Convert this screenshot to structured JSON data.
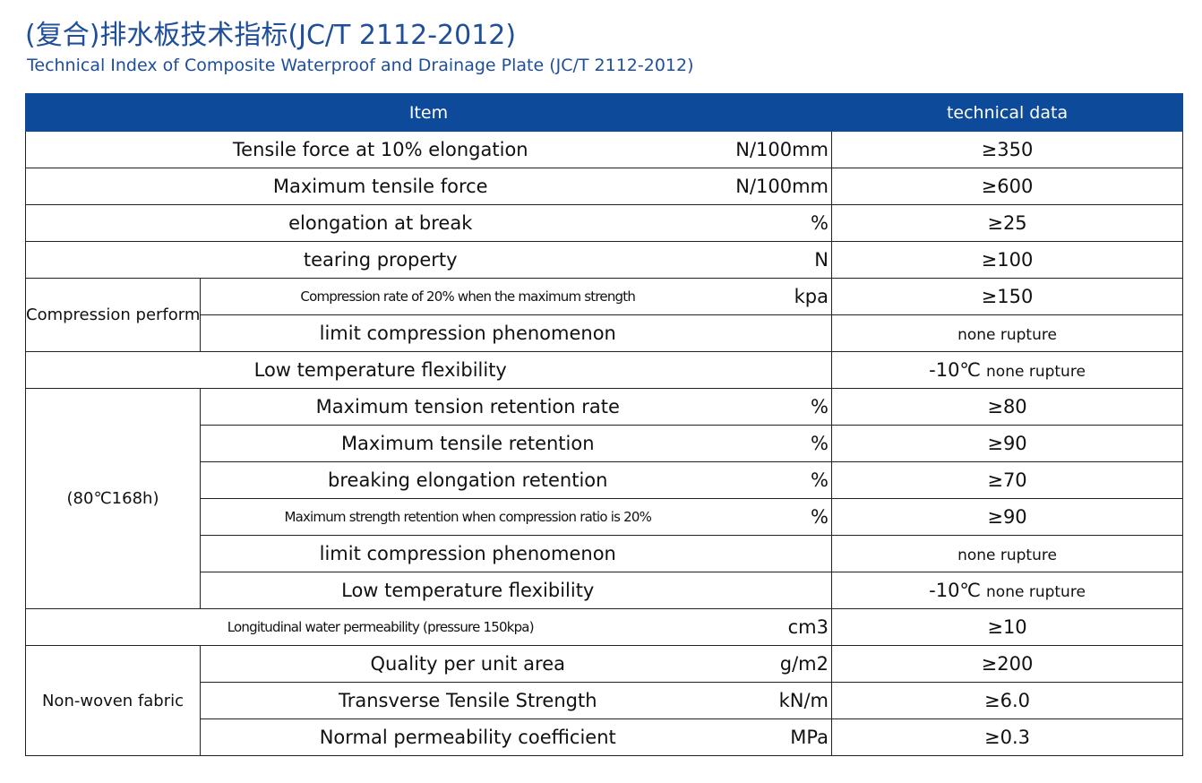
{
  "header": {
    "title": "(复合)排水板技术指标(JC/T 2112-2012)",
    "subtitle": "Technical Index of Composite Waterproof and Drainage Plate (JC/T 2112-2012)"
  },
  "table": {
    "columns": [
      "Item",
      "technical data"
    ],
    "sections": [
      {
        "rows": [
          {
            "item": "Tensile force at 10% elongation",
            "unit": "N/100mm",
            "value": "≥350"
          },
          {
            "item": "Maximum tensile force",
            "unit": "N/100mm",
            "value": "≥600"
          },
          {
            "item": "elongation at break",
            "unit": "%",
            "value": "≥25"
          },
          {
            "item": "tearing property",
            "unit": "N",
            "value": "≥100"
          }
        ]
      },
      {
        "group": "Compression performance",
        "rows": [
          {
            "item": "Compression rate of 20% when the maximum strength",
            "unit": "kpa",
            "value": "≥150"
          },
          {
            "item": "limit compression phenomenon",
            "value_note": "none rupture"
          }
        ]
      },
      {
        "rows": [
          {
            "item": "Low temperature flexibility",
            "value": "-10℃",
            "value_note": "none rupture"
          }
        ]
      },
      {
        "group": "(80℃168h)",
        "rows": [
          {
            "item": "Maximum tension retention rate",
            "unit": "%",
            "value": "≥80"
          },
          {
            "item": "Maximum tensile retention",
            "unit": "%",
            "value": "≥90"
          },
          {
            "item": "breaking elongation retention",
            "unit": "%",
            "value": "≥70"
          },
          {
            "item": "Maximum strength retention when compression ratio is 20%",
            "unit": "%",
            "value": "≥90"
          },
          {
            "item": "limit compression phenomenon",
            "value_note": "none rupture"
          },
          {
            "item": "Low temperature flexibility",
            "value": "-10℃",
            "value_note": "none rupture"
          }
        ]
      },
      {
        "rows": [
          {
            "item": "Longitudinal water permeability (pressure 150kpa)",
            "unit": "cm3",
            "value": "≥10"
          }
        ]
      },
      {
        "group": "Non-woven fabric",
        "rows": [
          {
            "item": "Quality per unit area",
            "unit": "g/m2",
            "value": "≥200"
          },
          {
            "item": "Transverse Tensile Strength",
            "unit": "kN/m",
            "value": "≥6.0"
          },
          {
            "item": "Normal permeability coefficient",
            "unit": "MPa",
            "value": "≥0.3"
          }
        ]
      }
    ]
  }
}
